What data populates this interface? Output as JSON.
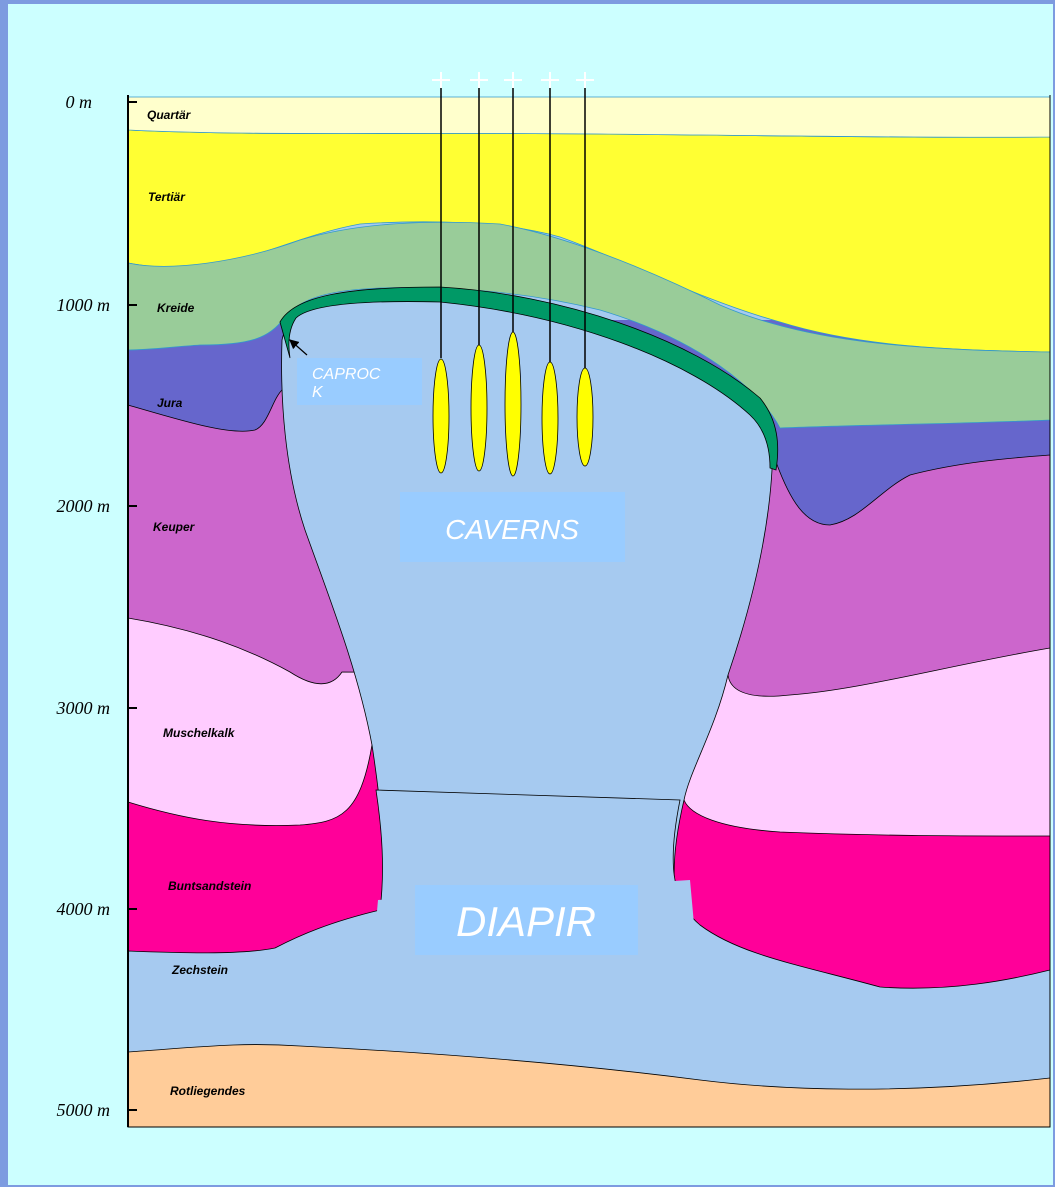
{
  "depth_axis": {
    "ticks": [
      "0 m",
      "1000 m",
      "2000 m",
      "3000 m",
      "4000 m",
      "5000 m"
    ]
  },
  "layers": [
    "Quartär",
    "Tertiär",
    "Kreide",
    "Jura",
    "Keuper",
    "Muschelkalk",
    "Buntsandstein",
    "Zechstein",
    "Rotliegendes"
  ],
  "labels": {
    "caprock": "CAPROCK",
    "caverns": "CAVERNS",
    "diapir": "DIAPIR"
  }
}
